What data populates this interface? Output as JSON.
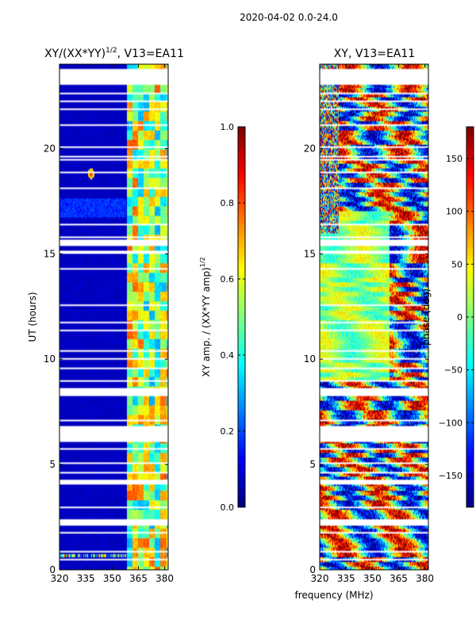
{
  "suptitle": "2020-04-02 0.0-24.0",
  "xlabel": "frequency (MHz)",
  "colors": {
    "jet": [
      "#00007f",
      "#0000ff",
      "#007fff",
      "#00ffff",
      "#7fff7f",
      "#ffff00",
      "#ff7f00",
      "#ff0000",
      "#7f0000"
    ],
    "gap": "#ffffff"
  },
  "chart_data": [
    {
      "type": "heatmap",
      "panel": "amplitude",
      "title_prefix": "XY/(XX*YY)",
      "title_sup": "1/2",
      "title_suffix": ", V13=EA11",
      "ylabel": "UT (hours)",
      "xlim": [
        320,
        382
      ],
      "ylim": [
        0,
        24
      ],
      "xticks": [
        320,
        335,
        350,
        365,
        380
      ],
      "yticks": [
        0,
        5,
        10,
        15,
        20
      ],
      "colorbar": {
        "label_prefix": "XY amp. / (XX*YY amp)",
        "label_sup": "1/2",
        "range": [
          0.0,
          1.0
        ],
        "ticks": [
          "0.0",
          "0.2",
          "0.4",
          "0.6",
          "0.8",
          "1.0"
        ]
      },
      "description": "low ratio (~0.05) below 359 MHz, banded 0.3-0.7 values between 359 and 382 MHz; bright spot near 338 MHz at 18.8 h"
    },
    {
      "type": "heatmap",
      "panel": "phase",
      "title": "XY, V13=EA11",
      "xlim": [
        320,
        382
      ],
      "ylim": [
        0,
        24
      ],
      "xticks": [
        320,
        335,
        350,
        365,
        380
      ],
      "yticks": [
        0,
        5,
        10,
        15,
        20
      ],
      "colorbar": {
        "label": "phase (deg)",
        "range": [
          -180,
          180
        ],
        "ticks": [
          "-150",
          "-100",
          "-50",
          "0",
          "50",
          "100",
          "150"
        ]
      },
      "description": "noisy phase with diagonal stripes, mostly near 0 deg between 9 and 17 h"
    }
  ],
  "flagged_hours": [
    [
      23.05,
      23.75
    ],
    [
      22.55,
      22.62
    ],
    [
      22.22,
      22.28
    ],
    [
      21.85,
      21.92
    ],
    [
      21.5,
      21.56
    ],
    [
      21.08,
      21.14
    ],
    [
      20.02,
      20.08
    ],
    [
      19.6,
      19.68
    ],
    [
      19.42,
      19.48
    ],
    [
      18.82,
      18.88
    ],
    [
      18.05,
      18.12
    ],
    [
      17.82,
      17.88
    ],
    [
      16.85,
      16.9
    ],
    [
      16.35,
      16.42
    ],
    [
      15.75,
      15.82
    ],
    [
      15.38,
      15.66
    ],
    [
      15.02,
      15.14
    ],
    [
      14.28,
      14.34
    ],
    [
      13.62,
      13.68
    ],
    [
      12.55,
      12.62
    ],
    [
      11.68,
      11.74
    ],
    [
      11.32,
      11.38
    ],
    [
      10.35,
      10.42
    ],
    [
      9.98,
      10.04
    ],
    [
      9.52,
      9.58
    ],
    [
      8.92,
      8.98
    ],
    [
      8.58,
      8.64
    ],
    [
      8.28,
      8.52
    ],
    [
      7.62,
      7.68
    ],
    [
      7.05,
      7.12
    ],
    [
      6.05,
      6.82
    ],
    [
      5.72,
      5.78
    ],
    [
      5.02,
      5.08
    ],
    [
      4.58,
      4.64
    ],
    [
      4.08,
      4.3
    ],
    [
      3.42,
      3.48
    ],
    [
      2.92,
      2.98
    ],
    [
      2.52,
      2.58
    ],
    [
      2.12,
      2.38
    ],
    [
      1.72,
      1.78
    ],
    [
      1.32,
      1.38
    ],
    [
      0.82,
      0.88
    ],
    [
      0.44,
      0.5
    ]
  ]
}
